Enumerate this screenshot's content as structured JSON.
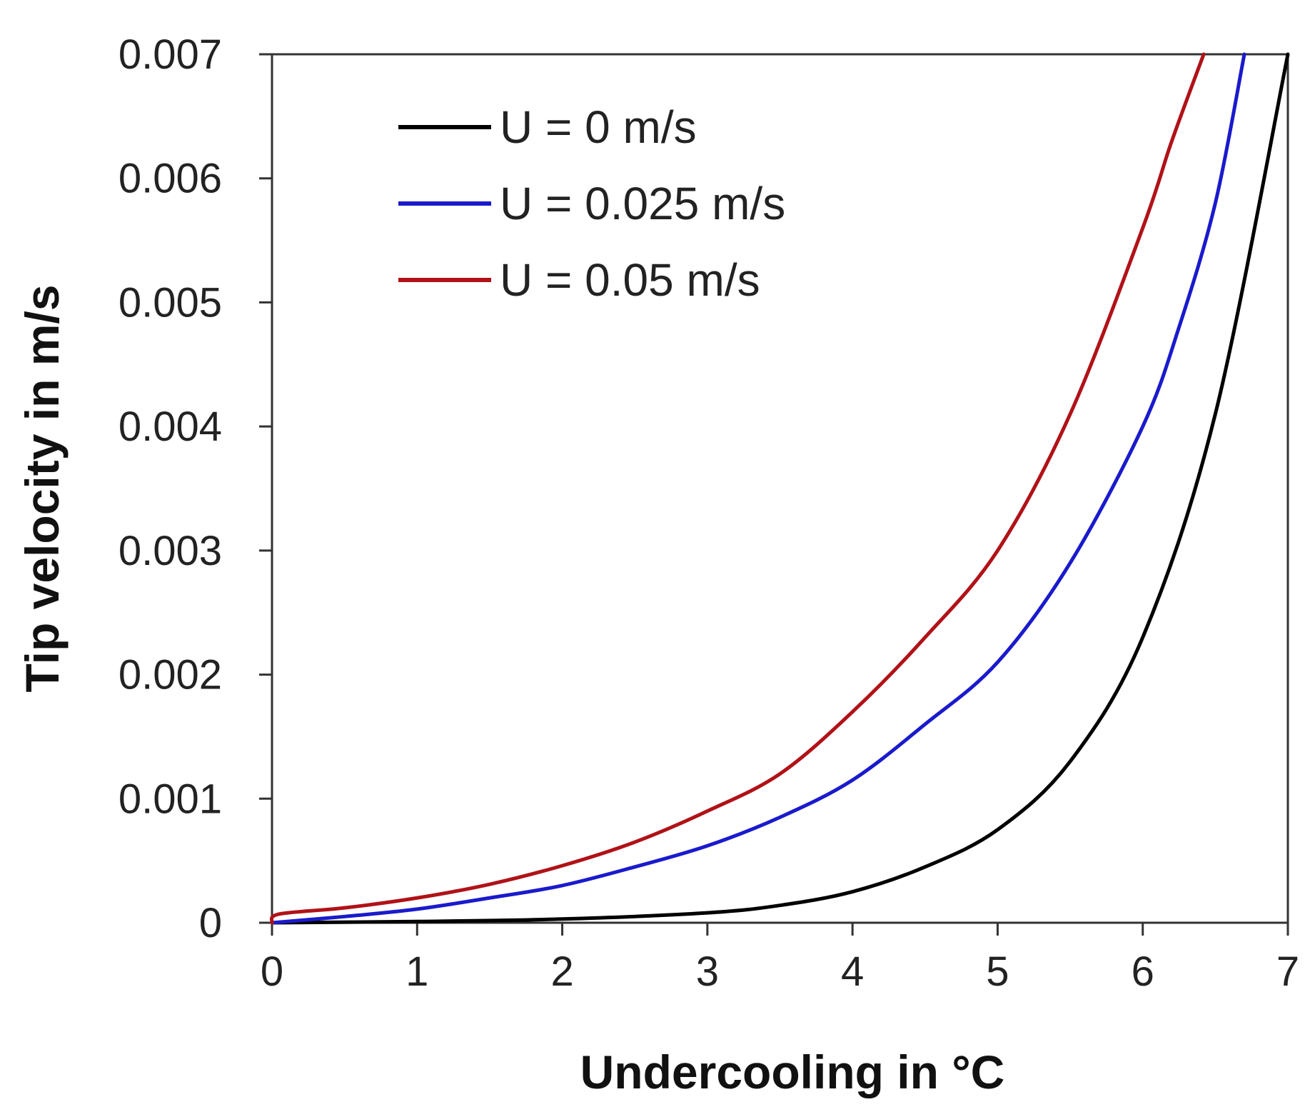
{
  "chart_data": {
    "type": "line",
    "title": "",
    "xlabel": "Undercooling in °C",
    "ylabel": "Tip velocity in m/s",
    "xlim": [
      0,
      7
    ],
    "ylim": [
      0,
      0.007
    ],
    "x_ticks": [
      0,
      1,
      2,
      3,
      4,
      5,
      6,
      7
    ],
    "x_tick_labels": [
      "0",
      "1",
      "2",
      "3",
      "4",
      "5",
      "6",
      "7"
    ],
    "y_ticks": [
      0,
      0.001,
      0.002,
      0.003,
      0.004,
      0.005,
      0.006,
      0.007
    ],
    "y_tick_labels": [
      "0",
      "0.001",
      "0.002",
      "0.003",
      "0.004",
      "0.005",
      "0.006",
      "0.007"
    ],
    "grid": false,
    "legend_position": "top-left",
    "series": [
      {
        "name": "U = 0 m/s",
        "color": "#000000",
        "x": [
          0,
          1,
          2,
          3,
          3.5,
          4,
          4.5,
          5,
          5.5,
          6,
          6.5,
          7
        ],
        "y": [
          0,
          1e-05,
          3e-05,
          8e-05,
          0.00014,
          0.00025,
          0.00045,
          0.00075,
          0.0013,
          0.0023,
          0.0041,
          0.007
        ]
      },
      {
        "name": "U = 0.025 m/s",
        "color": "#1a1acc",
        "x": [
          0,
          0.5,
          1,
          1.5,
          2,
          2.5,
          3,
          3.5,
          4,
          4.5,
          5,
          5.5,
          6,
          6.25,
          6.5,
          6.7
        ],
        "y": [
          0,
          5e-05,
          0.00011,
          0.0002,
          0.0003,
          0.00045,
          0.00062,
          0.00085,
          0.00115,
          0.0016,
          0.0021,
          0.0029,
          0.004,
          0.0048,
          0.0058,
          0.007
        ]
      },
      {
        "name": "U = 0.05 m/s",
        "color": "#b01218",
        "x": [
          0,
          0.05,
          0.5,
          1,
          1.5,
          2,
          2.5,
          3,
          3.5,
          4,
          4.5,
          5,
          5.5,
          6,
          6.2,
          6.42
        ],
        "y": [
          0,
          7e-05,
          0.00012,
          0.0002,
          0.00031,
          0.00046,
          0.00065,
          0.0009,
          0.0012,
          0.0017,
          0.0023,
          0.003,
          0.0041,
          0.0056,
          0.0063,
          0.007
        ]
      }
    ]
  }
}
